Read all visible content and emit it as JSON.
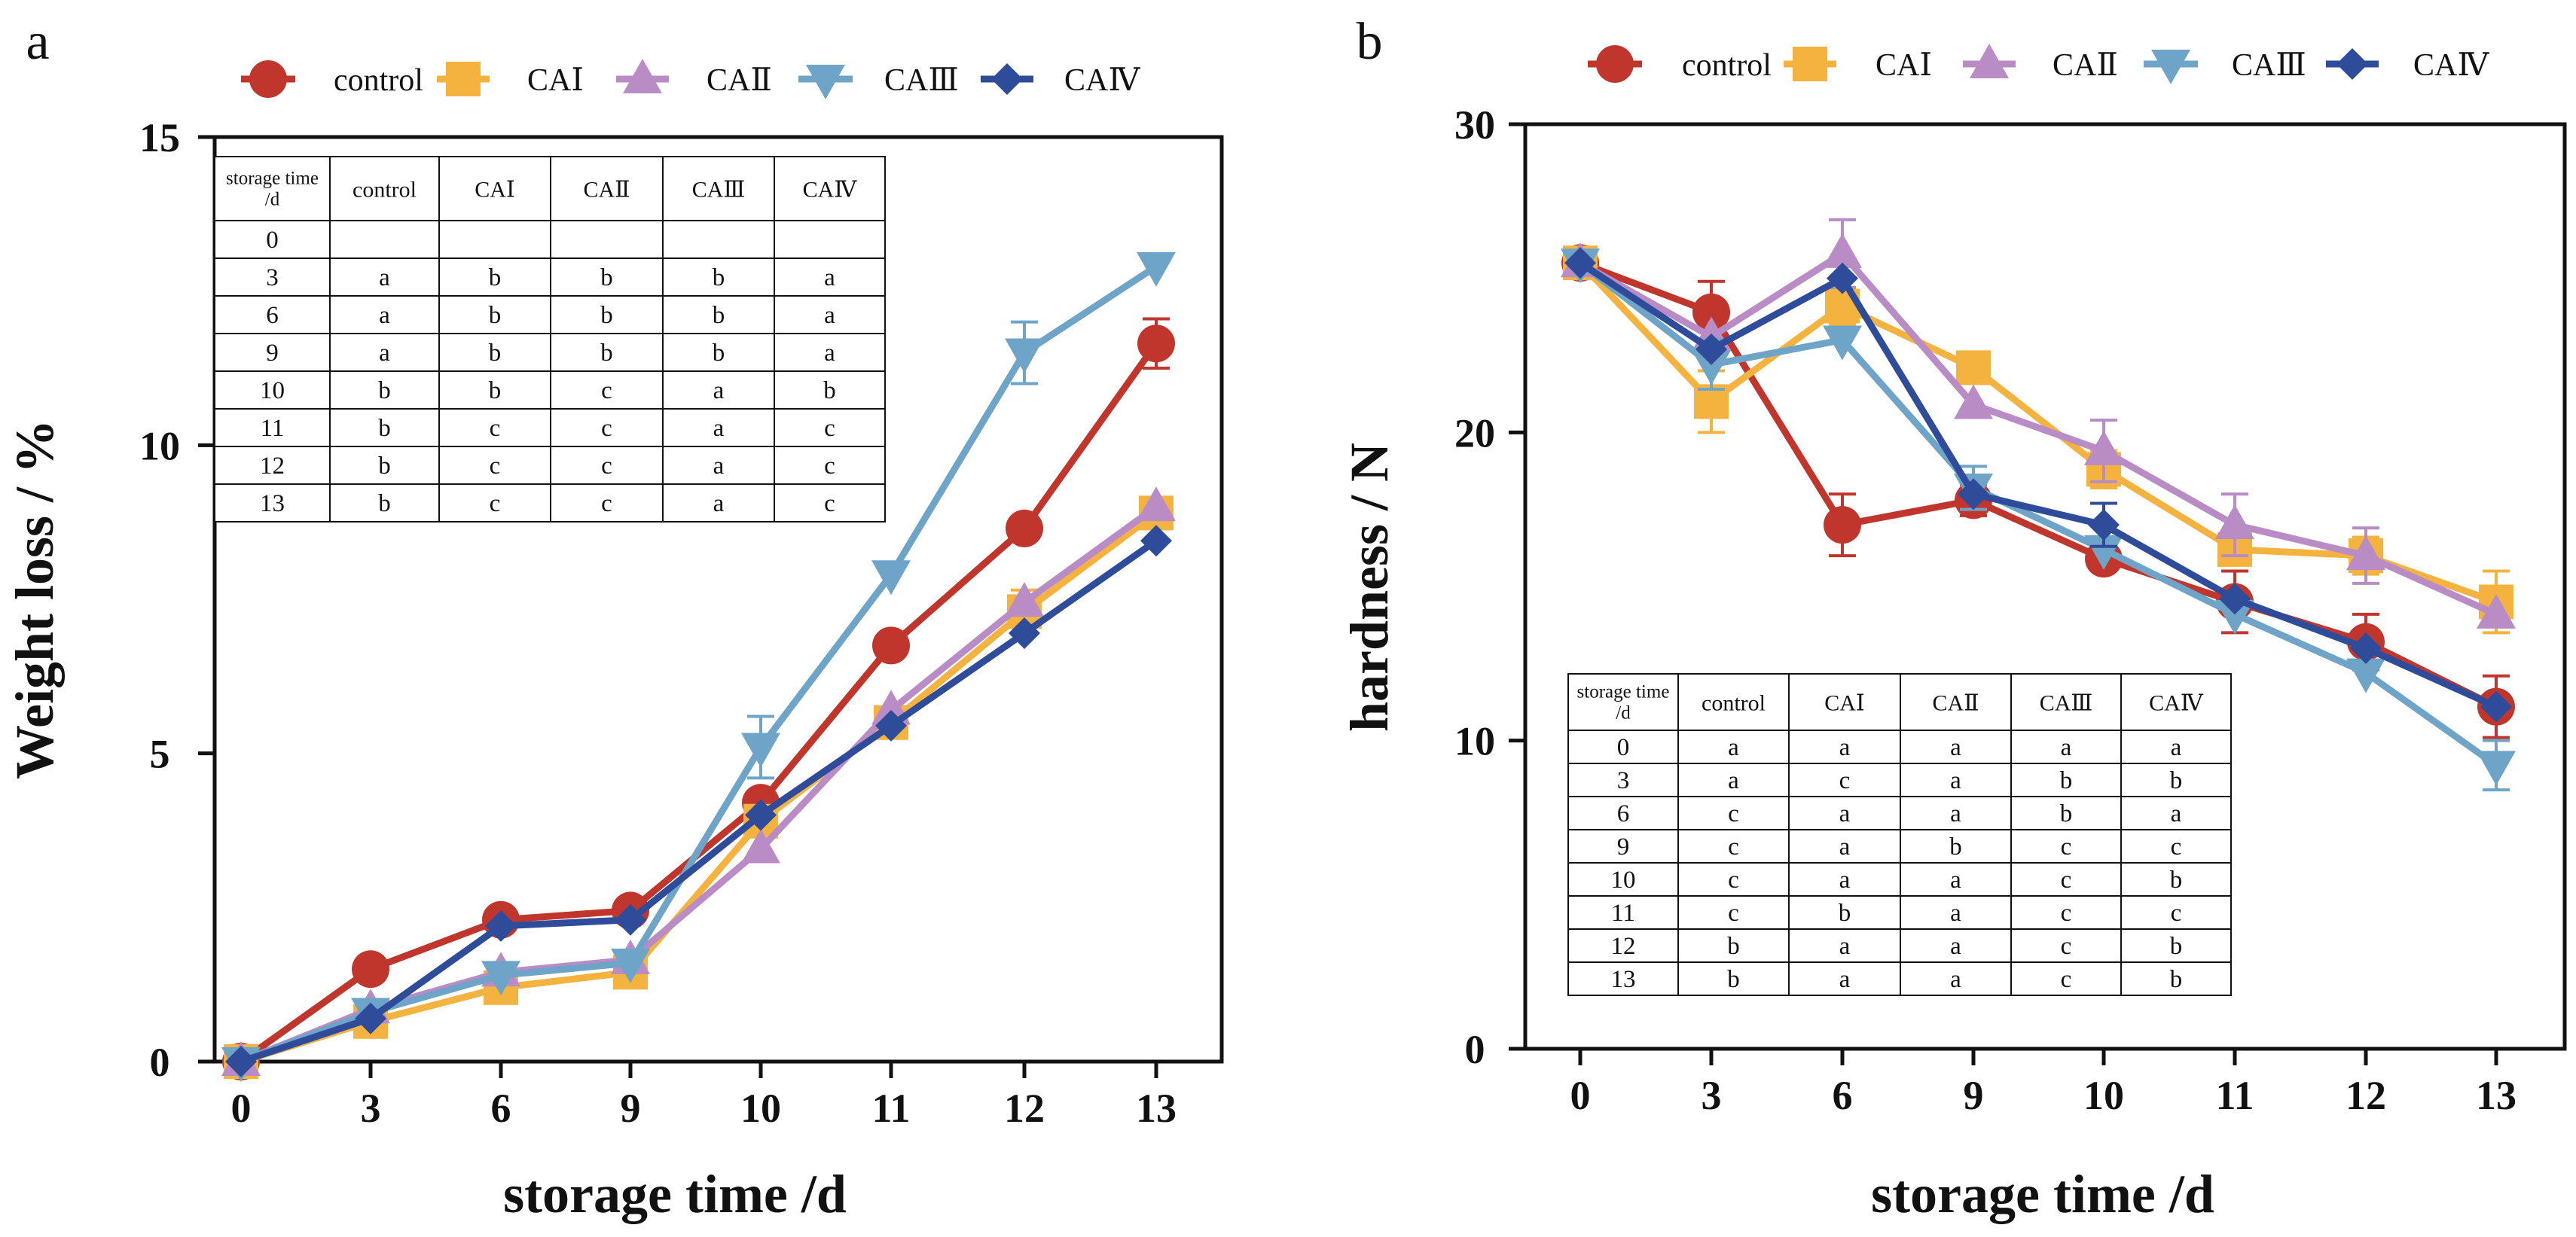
{
  "chart_data": [
    {
      "type": "line",
      "panel_letter": "a",
      "title": "",
      "xlabel": "storage time /d",
      "ylabel": "Weight loss / %",
      "categories": [
        "0",
        "3",
        "6",
        "9",
        "10",
        "11",
        "12",
        "13"
      ],
      "ylim": [
        0,
        15
      ],
      "yticks": [
        "0",
        "5",
        "10",
        "15"
      ],
      "legend_position": "top",
      "series": [
        {
          "name": "control",
          "color": "#C0362C",
          "marker": "circle",
          "values": [
            0,
            1.5,
            2.3,
            2.45,
            4.2,
            6.75,
            8.65,
            11.65
          ],
          "errors": [
            0,
            0,
            0,
            0,
            0.15,
            0,
            0,
            0.4
          ]
        },
        {
          "name": "CAⅠ",
          "color": "#F4B33E",
          "marker": "square",
          "values": [
            0,
            0.65,
            1.2,
            1.45,
            3.9,
            5.5,
            7.3,
            8.9
          ],
          "errors": [
            0,
            0,
            0,
            0,
            0.1,
            0,
            0.35,
            0.1
          ]
        },
        {
          "name": "CAⅡ",
          "color": "#B98CC5",
          "marker": "triangle-up",
          "values": [
            0,
            0.85,
            1.45,
            1.65,
            3.45,
            5.7,
            7.45,
            9.0
          ],
          "errors": [
            0,
            0,
            0,
            0,
            0,
            0,
            0,
            0
          ]
        },
        {
          "name": "CAⅢ",
          "color": "#6EA4C8",
          "marker": "triangle-down",
          "values": [
            0,
            0.8,
            1.4,
            1.6,
            5.1,
            7.9,
            11.5,
            12.9
          ],
          "errors": [
            0,
            0,
            0,
            0,
            0.5,
            0,
            0.5,
            0
          ]
        },
        {
          "name": "CAⅣ",
          "color": "#2F4C9A",
          "marker": "diamond",
          "values": [
            0,
            0.7,
            2.2,
            2.3,
            4.0,
            5.45,
            6.95,
            8.45
          ],
          "errors": [
            0,
            0,
            0,
            0,
            0,
            0,
            0,
            0
          ]
        }
      ],
      "significance_table": {
        "header": [
          "storage time\n/d",
          "control",
          "CAⅠ",
          "CAⅡ",
          "CAⅢ",
          "CAⅣ"
        ],
        "rows": [
          [
            "0",
            "",
            "",
            "",
            "",
            ""
          ],
          [
            "3",
            "a",
            "b",
            "b",
            "b",
            "a"
          ],
          [
            "6",
            "a",
            "b",
            "b",
            "b",
            "a"
          ],
          [
            "9",
            "a",
            "b",
            "b",
            "b",
            "a"
          ],
          [
            "10",
            "b",
            "b",
            "c",
            "a",
            "b"
          ],
          [
            "11",
            "b",
            "c",
            "c",
            "a",
            "c"
          ],
          [
            "12",
            "b",
            "c",
            "c",
            "a",
            "c"
          ],
          [
            "13",
            "b",
            "c",
            "c",
            "a",
            "c"
          ]
        ]
      }
    },
    {
      "type": "line",
      "panel_letter": "b",
      "title": "",
      "xlabel": "storage time /d",
      "ylabel": "hardness / N",
      "categories": [
        "0",
        "3",
        "6",
        "9",
        "10",
        "11",
        "12",
        "13"
      ],
      "ylim": [
        0,
        30
      ],
      "yticks": [
        "0",
        "10",
        "20",
        "30"
      ],
      "legend_position": "top",
      "series": [
        {
          "name": "control",
          "color": "#C0362C",
          "marker": "circle",
          "values": [
            25.5,
            23.9,
            17.0,
            17.8,
            15.9,
            14.5,
            13.2,
            11.1
          ],
          "errors": [
            0,
            1.0,
            1.0,
            0.5,
            0,
            1.0,
            0.9,
            1.0
          ]
        },
        {
          "name": "CAⅠ",
          "color": "#F4B33E",
          "marker": "square",
          "values": [
            25.5,
            21.0,
            24.1,
            22.1,
            18.8,
            16.2,
            16.0,
            14.5
          ],
          "errors": [
            0,
            1.0,
            0.6,
            0,
            0.6,
            0,
            0.6,
            1.0
          ]
        },
        {
          "name": "CAⅡ",
          "color": "#B98CC5",
          "marker": "triangle-up",
          "values": [
            25.5,
            23.1,
            25.8,
            20.9,
            19.4,
            17.0,
            16.0,
            14.1
          ],
          "errors": [
            0,
            0,
            1.1,
            0,
            1.0,
            1.0,
            0.9,
            0
          ]
        },
        {
          "name": "CAⅢ",
          "color": "#6EA4C8",
          "marker": "triangle-down",
          "values": [
            25.5,
            22.2,
            23.0,
            18.2,
            16.2,
            14.1,
            12.2,
            9.2
          ],
          "errors": [
            0,
            0.8,
            0,
            0.7,
            0,
            0,
            0,
            0.8
          ]
        },
        {
          "name": "CAⅣ",
          "color": "#2F4C9A",
          "marker": "diamond",
          "values": [
            25.5,
            22.7,
            25.0,
            18.0,
            17.0,
            14.6,
            13.0,
            11.1
          ],
          "errors": [
            0,
            0,
            0,
            0,
            0.7,
            0,
            0,
            0
          ]
        }
      ],
      "significance_table": {
        "header": [
          "storage time\n/d",
          "control",
          "CAⅠ",
          "CAⅡ",
          "CAⅢ",
          "CAⅣ"
        ],
        "rows": [
          [
            "0",
            "a",
            "a",
            "a",
            "a",
            "a"
          ],
          [
            "3",
            "a",
            "c",
            "a",
            "b",
            "b"
          ],
          [
            "6",
            "c",
            "a",
            "a",
            "b",
            "a"
          ],
          [
            "9",
            "c",
            "a",
            "b",
            "c",
            "c"
          ],
          [
            "10",
            "c",
            "a",
            "a",
            "c",
            "b"
          ],
          [
            "11",
            "c",
            "b",
            "a",
            "c",
            "c"
          ],
          [
            "12",
            "b",
            "a",
            "a",
            "c",
            "b"
          ],
          [
            "13",
            "b",
            "a",
            "a",
            "c",
            "b"
          ]
        ]
      }
    }
  ]
}
